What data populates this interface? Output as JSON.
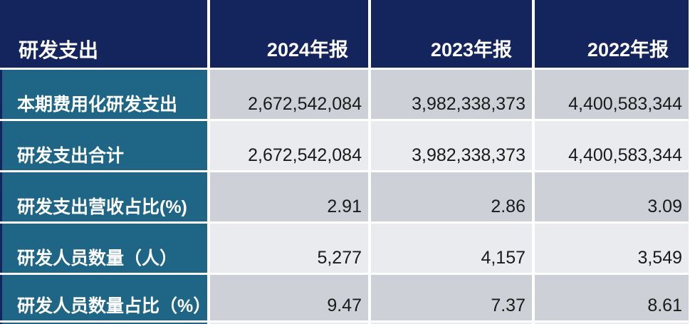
{
  "table": {
    "title": "研发支出",
    "columns": [
      "2024年报",
      "2023年报",
      "2022年报"
    ],
    "rows": [
      {
        "label": "本期费用化研发支出",
        "values": [
          "2,672,542,084",
          "3,982,338,373",
          "4,400,583,344"
        ]
      },
      {
        "label": "研发支出合计",
        "values": [
          "2,672,542,084",
          "3,982,338,373",
          "4,400,583,344"
        ]
      },
      {
        "label": "研发支出营收占比(%)",
        "values": [
          "2.91",
          "2.86",
          "3.09"
        ]
      },
      {
        "label": "研发人员数量（人）",
        "values": [
          "5,277",
          "4,157",
          "3,549"
        ]
      },
      {
        "label": "研发人员数量占比（%）",
        "values": [
          "9.47",
          "7.37",
          "8.61"
        ]
      }
    ]
  },
  "chart_data": {
    "type": "table",
    "title": "研发支出",
    "columns": [
      "研发支出",
      "2024年报",
      "2023年报",
      "2022年报"
    ],
    "rows": [
      [
        "本期费用化研发支出",
        2672542084,
        3982338373,
        4400583344
      ],
      [
        "研发支出合计",
        2672542084,
        3982338373,
        4400583344
      ],
      [
        "研发支出营收占比(%)",
        2.91,
        2.86,
        3.09
      ],
      [
        "研发人员数量（人）",
        5277,
        4157,
        3549
      ],
      [
        "研发人员数量占比（%）",
        9.47,
        7.37,
        8.61
      ]
    ]
  },
  "colors": {
    "header_bg": "#13255c",
    "header_text": "#ffffff",
    "label_bg": "#1e6586",
    "label_text": "#ffffff",
    "row_bg_odd": "#cdd0d6",
    "row_bg_even": "#e9ebee",
    "value_text": "#1a1a1a",
    "separator": "#ffffff"
  }
}
